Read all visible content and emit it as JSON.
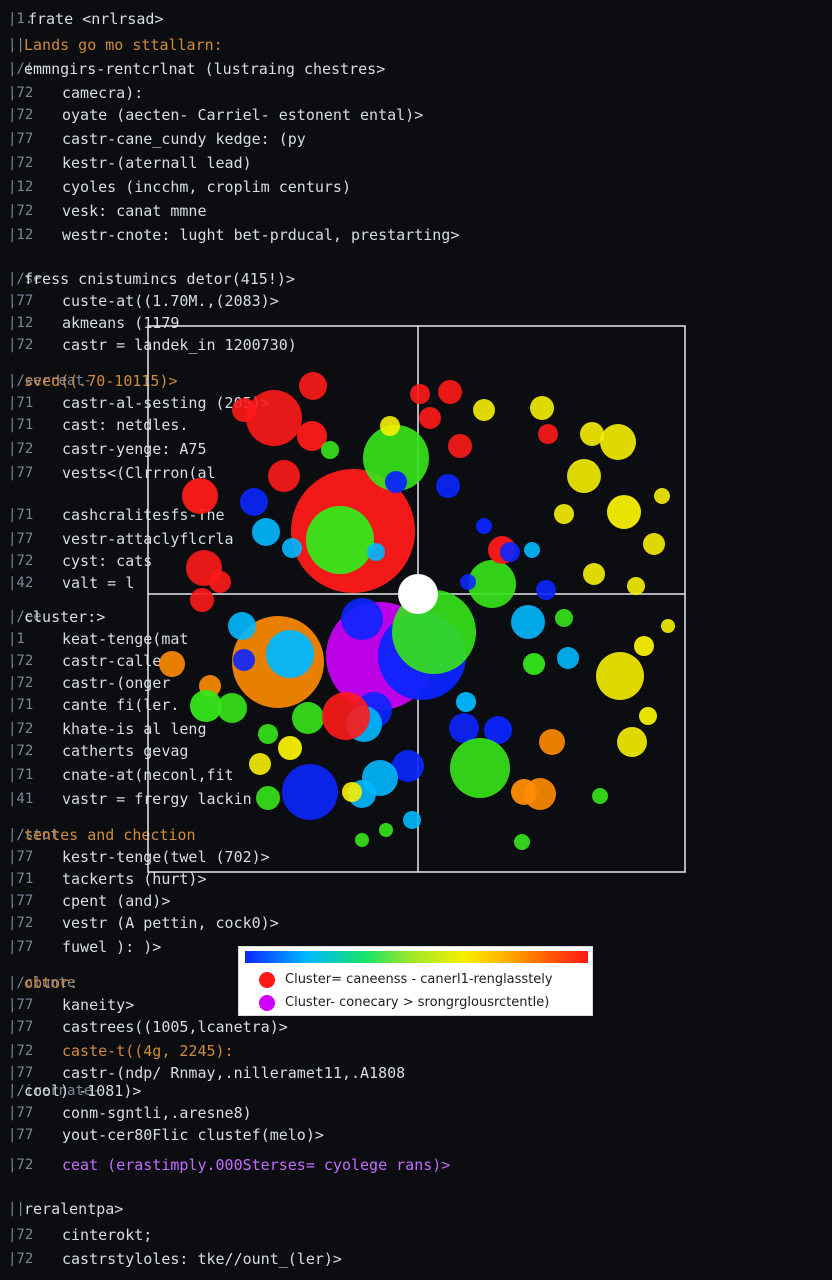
{
  "editor": {
    "lines": [
      {
        "ln": "|1.",
        "code": "frate <nrlrsad>",
        "tone": "white",
        "indent": "top"
      },
      {
        "ln": "||",
        "code": "Lands go mo sttallarn:",
        "tone": "orange",
        "indent": "head"
      },
      {
        "ln": "|/(",
        "code": "emmngirs-rentcrlnat (lustraing chestres>",
        "tone": "white",
        "indent": "head"
      },
      {
        "ln": "|72",
        "code": "camecra):",
        "tone": "white",
        "indent": "code"
      },
      {
        "ln": "|72",
        "code": "oyate (aecten- Carriel- estonent ental)>",
        "tone": "white",
        "indent": "code"
      },
      {
        "ln": "|77",
        "code": "castr-cane_cundy kedge: (py",
        "tone": "white",
        "indent": "code"
      },
      {
        "ln": "|72",
        "code": "kestr-(aternall lead)",
        "tone": "white",
        "indent": "code"
      },
      {
        "ln": "|12",
        "code": "cyoles (incchm, croplim centurs)",
        "tone": "white",
        "indent": "code"
      },
      {
        "ln": "|72",
        "code": "vesk: canat mmne",
        "tone": "white",
        "indent": "code"
      },
      {
        "ln": "|12",
        "code": "westr-cnote: lught bet-prducal, prestarting>",
        "tone": "white",
        "indent": "code"
      },
      {
        "ln": "|/se",
        "code": "fress cnistumincs detor(415!)>",
        "tone": "white",
        "indent": "head"
      },
      {
        "ln": "|77",
        "code": "custe-at((1.70M.,(2083)>",
        "tone": "white",
        "indent": "code"
      },
      {
        "ln": "|12",
        "code": "akmeans (1179",
        "tone": "white",
        "indent": "code"
      },
      {
        "ln": "|72",
        "code": "castr = landek_in 1200730)",
        "tone": "white",
        "indent": "code"
      },
      {
        "ln": "|/eerreat-",
        "code": "sved((.70-10115)>",
        "tone": "orange",
        "indent": "head"
      },
      {
        "ln": "|71",
        "code": "castr-al-sesting (205)>",
        "tone": "white",
        "indent": "code"
      },
      {
        "ln": "|71",
        "code": "cast: netdles.",
        "tone": "white",
        "indent": "code"
      },
      {
        "ln": "|72",
        "code": "castr-yenge: A75",
        "tone": "white",
        "indent": "code"
      },
      {
        "ln": "|77",
        "code": "vests<(Clrrron(al",
        "tone": "white",
        "indent": "code"
      },
      {
        "ln": "|71",
        "code": "cashcralitesfs-The",
        "tone": "white",
        "indent": "code"
      },
      {
        "ln": "|77",
        "code": "vestr-attaclyflcrla",
        "tone": "white",
        "indent": "code"
      },
      {
        "ln": "|72",
        "code": "cyst: cats",
        "tone": "white",
        "indent": "code"
      },
      {
        "ln": "|42",
        "code": "valt = l",
        "tone": "white",
        "indent": "code"
      },
      {
        "ln": "|/ee",
        "code": "cluster:>",
        "tone": "white",
        "indent": "head"
      },
      {
        "ln": "|1",
        "code": "keat-tenge(mat",
        "tone": "white",
        "indent": "code"
      },
      {
        "ln": "|72",
        "code": "castr-calle",
        "tone": "white",
        "indent": "code"
      },
      {
        "ln": "|72",
        "code": "castr-(onger",
        "tone": "white",
        "indent": "code"
      },
      {
        "ln": "|71",
        "code": "cante fi(ler.",
        "tone": "white",
        "indent": "code"
      },
      {
        "ln": "|72",
        "code": "khate-is al leng",
        "tone": "white",
        "indent": "code"
      },
      {
        "ln": "|72",
        "code": "catherts gevag",
        "tone": "white",
        "indent": "code"
      },
      {
        "ln": "|71",
        "code": "cnate-at(neconl,fit",
        "tone": "white",
        "indent": "code"
      },
      {
        "ln": "|41",
        "code": "vastr = frergy lackin",
        "tone": "white",
        "indent": "code"
      },
      {
        "ln": "|/stot",
        "code": "tentes and chection",
        "tone": "orange",
        "indent": "head"
      },
      {
        "ln": "|77",
        "code": "kestr-tenge(twel (702)>",
        "tone": "white",
        "indent": "code"
      },
      {
        "ln": "|71",
        "code": "tackerts (hurt)>",
        "tone": "white",
        "indent": "code"
      },
      {
        "ln": "|77",
        "code": "cpent (and)>",
        "tone": "white",
        "indent": "code"
      },
      {
        "ln": "|72",
        "code": "vestr (A pettin, cock0)>",
        "tone": "white",
        "indent": "code"
      },
      {
        "ln": "|77",
        "code": "fuwel ): )>",
        "tone": "white",
        "indent": "code"
      },
      {
        "ln": "|/clunte",
        "code": "obtor:",
        "tone": "orange",
        "indent": "head"
      },
      {
        "ln": "|77",
        "code": "kaneity>",
        "tone": "white",
        "indent": "code"
      },
      {
        "ln": "|77",
        "code": "castrees((1005,lcanetra)>",
        "tone": "white",
        "indent": "code"
      },
      {
        "ln": "|72",
        "code": "caste-t((4g, 2245):",
        "tone": "orange",
        "indent": "code"
      },
      {
        "ln": "|77",
        "code": "castr-(ndp/ Rnmay,.nilleramet11,.A1808",
        "tone": "white",
        "indent": "code"
      },
      {
        "ln": "|/irernate-",
        "code": "cool) -1081)>",
        "tone": "white",
        "indent": "head"
      },
      {
        "ln": "|77",
        "code": "conm-sgntli,.aresne8)",
        "tone": "white",
        "indent": "code"
      },
      {
        "ln": "|77",
        "code": "yout-cer80Flic clustef(melo)>",
        "tone": "white",
        "indent": "code"
      },
      {
        "ln": "|72",
        "code": "ceat (erastimply.000Sterses= cyolege rans)>",
        "tone": "purple",
        "indent": "code"
      },
      {
        "ln": "||",
        "code": "reralentpa>",
        "tone": "white",
        "indent": "head"
      },
      {
        "ln": "|72",
        "code": "cinterokt;",
        "tone": "white",
        "indent": "code"
      },
      {
        "ln": "|72",
        "code": "castrstyloles: tke//ount_(ler)>",
        "tone": "white",
        "indent": "code"
      }
    ]
  },
  "plot": {
    "crosshair_visible": true,
    "center_marker": "white-circle",
    "legend": {
      "items": [
        {
          "name": "Cluster= caneenss - canerl1-renglasstely",
          "color": "#ff1a1a"
        },
        {
          "name": "Cluster- conecary > srongrglousrctentle)",
          "color": "#d000ff"
        }
      ]
    }
  },
  "colors": {
    "bg": "#0b0d10",
    "red": "#ff1a1a",
    "orange": "#ff8c00",
    "yellow": "#f7ef00",
    "green": "#36e61b",
    "blue": "#0b25ff",
    "cyan": "#00b8ff",
    "magenta": "#d000ff"
  }
}
